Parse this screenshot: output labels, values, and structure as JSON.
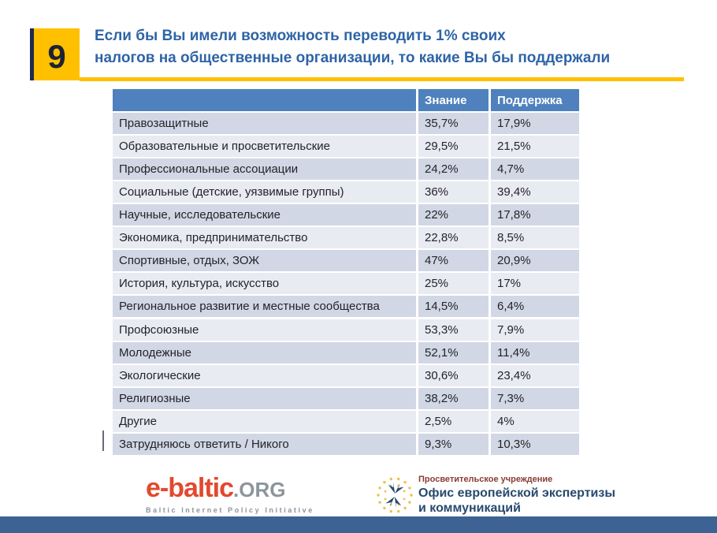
{
  "slide": {
    "number": "9",
    "title_line1": "Если бы Вы имели возможность переводить 1% своих",
    "title_line2": "налогов на общественные организации, то какие Вы бы поддержали"
  },
  "chart_data": {
    "type": "table",
    "title": "Если бы Вы имели возможность переводить 1% своих налогов на общественные организации, то какие Вы бы поддержали",
    "columns": [
      "",
      "Знание",
      "Поддержка"
    ],
    "rows": [
      [
        "Правозащитные",
        "35,7%",
        "17,9%"
      ],
      [
        "Образовательные и просветительские",
        "29,5%",
        "21,5%"
      ],
      [
        "Профессиональные ассоциации",
        "24,2%",
        "4,7%"
      ],
      [
        "Социальные (детские, уязвимые группы)",
        "36%",
        "39,4%"
      ],
      [
        "Научные, исследовательские",
        "22%",
        "17,8%"
      ],
      [
        "Экономика,  предпринимательство",
        "22,8%",
        "8,5%"
      ],
      [
        "Спортивные, отдых, ЗОЖ",
        "47%",
        "20,9%"
      ],
      [
        "История, культура, искусство",
        "25%",
        "17%"
      ],
      [
        "Региональное развитие и местные сообщества",
        "14,5%",
        "6,4%"
      ],
      [
        "Профсоюзные",
        "53,3%",
        "7,9%"
      ],
      [
        "Молодежные",
        "52,1%",
        "11,4%"
      ],
      [
        "Экологические",
        "30,6%",
        "23,4%"
      ],
      [
        "Религиозные",
        "38,2%",
        "7,3%"
      ],
      [
        "Другие",
        "2,5%",
        "4%"
      ],
      [
        "Затрудняюсь ответить / Никого",
        "9,3%",
        "10,3%"
      ]
    ],
    "gap_before_row_index": 9,
    "layout": {
      "header_bg": "#4E81BD",
      "row_band_dark": "#D2D7E5",
      "row_band_light": "#E9EBF2"
    }
  },
  "footer": {
    "ebaltic_logo": {
      "name_red": "e-baltic",
      "name_gray": ".ORG",
      "tagline": "Baltic Internet Policy Initiative"
    },
    "oeec_logo": {
      "line_small": "Просветительское учреждение",
      "line_big1": "Офис европейской экспертизы",
      "line_big2": "и коммуникаций"
    }
  },
  "colors": {
    "accent_yellow": "#FFC000",
    "title_blue": "#2e64a6",
    "header_blue": "#4E81BD",
    "bottom_bar_blue": "#3C6394",
    "ebaltic_red": "#E2492F",
    "logo_navy": "#27496D"
  }
}
